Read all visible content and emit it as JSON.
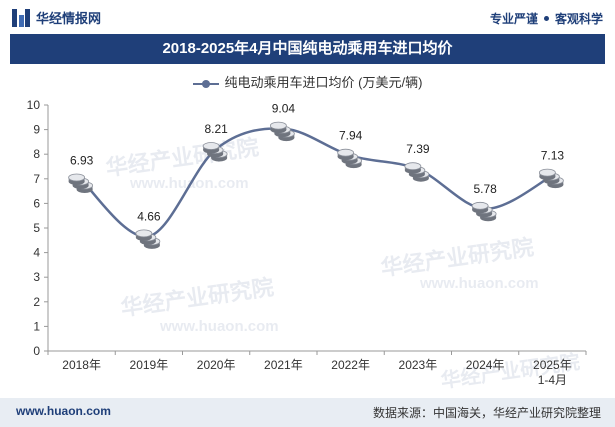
{
  "header": {
    "brand": "华经情报网",
    "tagline_left": "专业严谨",
    "tagline_right": "客观科学"
  },
  "title": "2018-2025年4月中国纯电动乘用车进口均价",
  "footer": {
    "website": "www.huaon.com",
    "source": "数据来源：中国海关，华经产业研究院整理"
  },
  "watermark": {
    "text": "华经产业研究院",
    "url": "www.huaon.com"
  },
  "colors": {
    "brand": "#1f3f79",
    "line": "#5d6e94"
  },
  "chart_data": {
    "type": "line",
    "categories": [
      "2018年",
      "2019年",
      "2020年",
      "2021年",
      "2022年",
      "2023年",
      "2024年",
      "2025年\n1-4月"
    ],
    "series": [
      {
        "name": "纯电动乘用车进口均价 (万美元/辆)",
        "values": [
          6.93,
          4.66,
          8.21,
          9.04,
          7.94,
          7.39,
          5.78,
          7.13
        ]
      }
    ],
    "ylim": [
      0,
      10
    ],
    "yticks": [
      0,
      1,
      2,
      3,
      4,
      5,
      6,
      7,
      8,
      9,
      10
    ],
    "grid": false,
    "legend": "top-center",
    "smooth": true,
    "marker": "coin-stack"
  }
}
